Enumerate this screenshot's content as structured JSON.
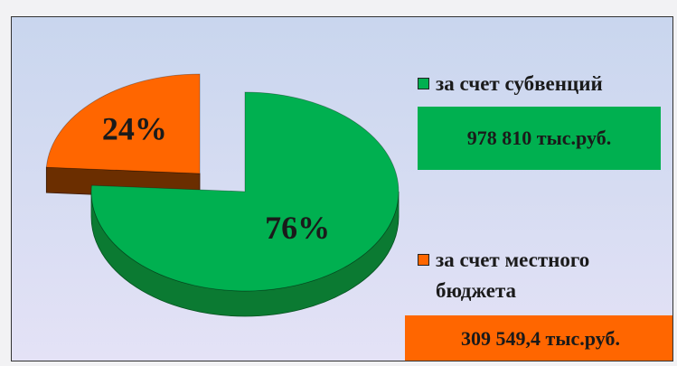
{
  "chart_data": {
    "type": "pie",
    "categories": [
      "за счет субвенций",
      "за счет местного бюджета"
    ],
    "values": [
      76,
      24
    ],
    "value_labels": [
      "76%",
      "24%"
    ],
    "colors": [
      "#00b050",
      "#ff6600"
    ],
    "side_colors": [
      "#0b7a32",
      "#6b2e00"
    ],
    "annotations": [
      "978 810 тыс.руб.",
      "309 549,4 тыс.руб."
    ]
  }
}
